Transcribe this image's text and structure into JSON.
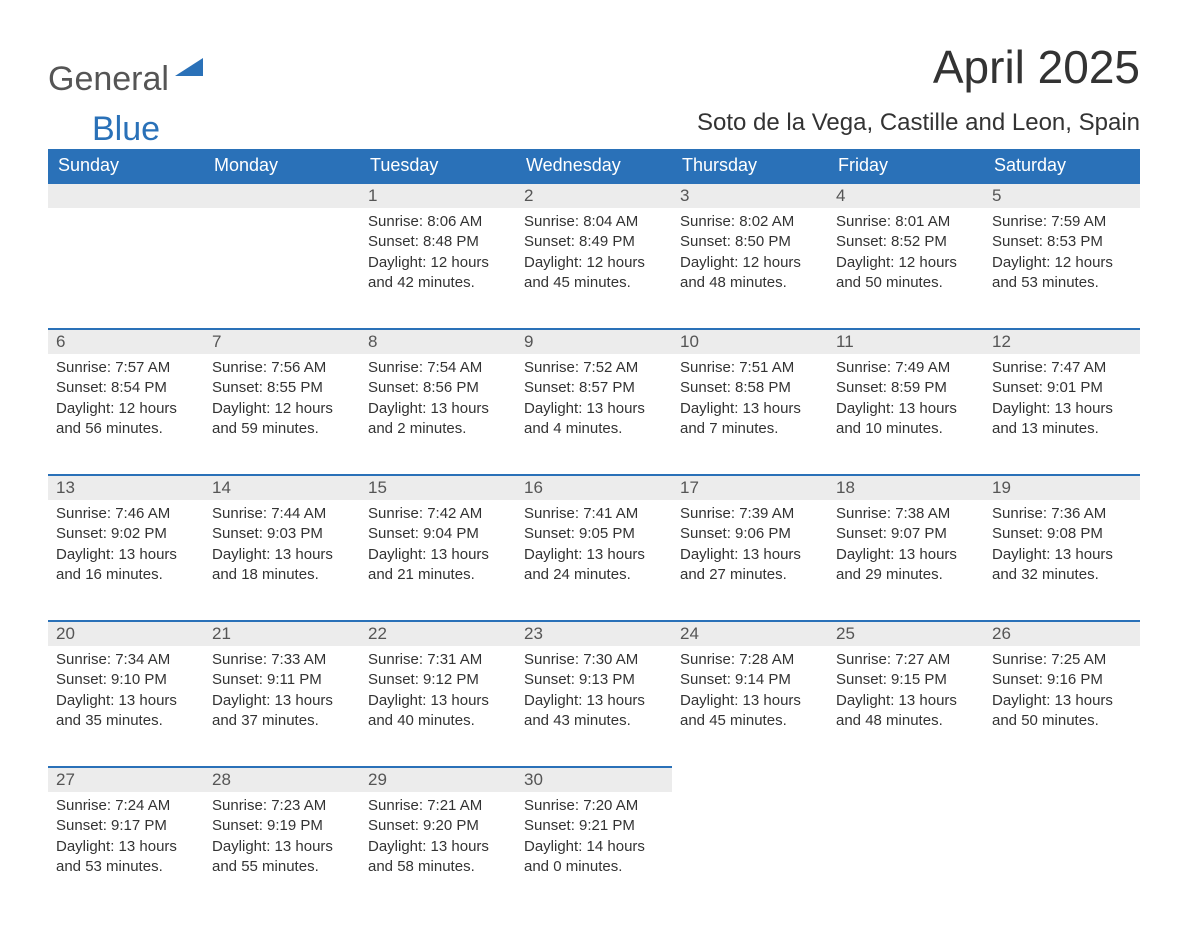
{
  "brand": {
    "word1": "General",
    "word2": "Blue",
    "word1_color": "#555555",
    "word2_color": "#2a71b8"
  },
  "title": "April 2025",
  "location": "Soto de la Vega, Castille and Leon, Spain",
  "calendar": {
    "type": "table",
    "columns": [
      "Sunday",
      "Monday",
      "Tuesday",
      "Wednesday",
      "Thursday",
      "Friday",
      "Saturday"
    ],
    "header_bg": "#2a71b8",
    "header_text_color": "#ffffff",
    "daybar_bg": "#ececec",
    "daybar_border_color": "#2a71b8",
    "body_bg": "#ffffff",
    "text_color": "#333333",
    "cell_fontsize_pt": 11,
    "header_fontsize_pt": 13,
    "weeks": [
      [
        null,
        null,
        {
          "n": "1",
          "sunrise": "8:06 AM",
          "sunset": "8:48 PM",
          "dl_h": "12",
          "dl_m": "42"
        },
        {
          "n": "2",
          "sunrise": "8:04 AM",
          "sunset": "8:49 PM",
          "dl_h": "12",
          "dl_m": "45"
        },
        {
          "n": "3",
          "sunrise": "8:02 AM",
          "sunset": "8:50 PM",
          "dl_h": "12",
          "dl_m": "48"
        },
        {
          "n": "4",
          "sunrise": "8:01 AM",
          "sunset": "8:52 PM",
          "dl_h": "12",
          "dl_m": "50"
        },
        {
          "n": "5",
          "sunrise": "7:59 AM",
          "sunset": "8:53 PM",
          "dl_h": "12",
          "dl_m": "53"
        }
      ],
      [
        {
          "n": "6",
          "sunrise": "7:57 AM",
          "sunset": "8:54 PM",
          "dl_h": "12",
          "dl_m": "56"
        },
        {
          "n": "7",
          "sunrise": "7:56 AM",
          "sunset": "8:55 PM",
          "dl_h": "12",
          "dl_m": "59"
        },
        {
          "n": "8",
          "sunrise": "7:54 AM",
          "sunset": "8:56 PM",
          "dl_h": "13",
          "dl_m": "2"
        },
        {
          "n": "9",
          "sunrise": "7:52 AM",
          "sunset": "8:57 PM",
          "dl_h": "13",
          "dl_m": "4"
        },
        {
          "n": "10",
          "sunrise": "7:51 AM",
          "sunset": "8:58 PM",
          "dl_h": "13",
          "dl_m": "7"
        },
        {
          "n": "11",
          "sunrise": "7:49 AM",
          "sunset": "8:59 PM",
          "dl_h": "13",
          "dl_m": "10"
        },
        {
          "n": "12",
          "sunrise": "7:47 AM",
          "sunset": "9:01 PM",
          "dl_h": "13",
          "dl_m": "13"
        }
      ],
      [
        {
          "n": "13",
          "sunrise": "7:46 AM",
          "sunset": "9:02 PM",
          "dl_h": "13",
          "dl_m": "16"
        },
        {
          "n": "14",
          "sunrise": "7:44 AM",
          "sunset": "9:03 PM",
          "dl_h": "13",
          "dl_m": "18"
        },
        {
          "n": "15",
          "sunrise": "7:42 AM",
          "sunset": "9:04 PM",
          "dl_h": "13",
          "dl_m": "21"
        },
        {
          "n": "16",
          "sunrise": "7:41 AM",
          "sunset": "9:05 PM",
          "dl_h": "13",
          "dl_m": "24"
        },
        {
          "n": "17",
          "sunrise": "7:39 AM",
          "sunset": "9:06 PM",
          "dl_h": "13",
          "dl_m": "27"
        },
        {
          "n": "18",
          "sunrise": "7:38 AM",
          "sunset": "9:07 PM",
          "dl_h": "13",
          "dl_m": "29"
        },
        {
          "n": "19",
          "sunrise": "7:36 AM",
          "sunset": "9:08 PM",
          "dl_h": "13",
          "dl_m": "32"
        }
      ],
      [
        {
          "n": "20",
          "sunrise": "7:34 AM",
          "sunset": "9:10 PM",
          "dl_h": "13",
          "dl_m": "35"
        },
        {
          "n": "21",
          "sunrise": "7:33 AM",
          "sunset": "9:11 PM",
          "dl_h": "13",
          "dl_m": "37"
        },
        {
          "n": "22",
          "sunrise": "7:31 AM",
          "sunset": "9:12 PM",
          "dl_h": "13",
          "dl_m": "40"
        },
        {
          "n": "23",
          "sunrise": "7:30 AM",
          "sunset": "9:13 PM",
          "dl_h": "13",
          "dl_m": "43"
        },
        {
          "n": "24",
          "sunrise": "7:28 AM",
          "sunset": "9:14 PM",
          "dl_h": "13",
          "dl_m": "45"
        },
        {
          "n": "25",
          "sunrise": "7:27 AM",
          "sunset": "9:15 PM",
          "dl_h": "13",
          "dl_m": "48"
        },
        {
          "n": "26",
          "sunrise": "7:25 AM",
          "sunset": "9:16 PM",
          "dl_h": "13",
          "dl_m": "50"
        }
      ],
      [
        {
          "n": "27",
          "sunrise": "7:24 AM",
          "sunset": "9:17 PM",
          "dl_h": "13",
          "dl_m": "53"
        },
        {
          "n": "28",
          "sunrise": "7:23 AM",
          "sunset": "9:19 PM",
          "dl_h": "13",
          "dl_m": "55"
        },
        {
          "n": "29",
          "sunrise": "7:21 AM",
          "sunset": "9:20 PM",
          "dl_h": "13",
          "dl_m": "58"
        },
        {
          "n": "30",
          "sunrise": "7:20 AM",
          "sunset": "9:21 PM",
          "dl_h": "14",
          "dl_m": "0"
        },
        null,
        null,
        null
      ]
    ],
    "labels": {
      "sunrise_prefix": "Sunrise: ",
      "sunset_prefix": "Sunset: ",
      "daylight_prefix": "Daylight: ",
      "hours_word": " hours",
      "and_word": "and ",
      "minutes_word": " minutes."
    }
  }
}
